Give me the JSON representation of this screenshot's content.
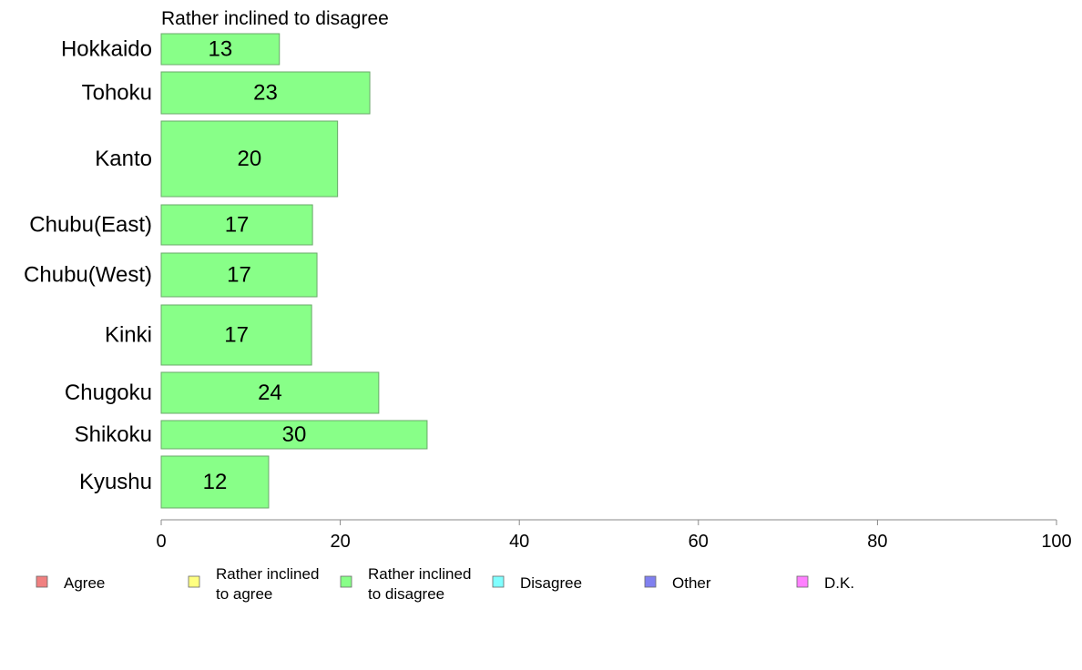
{
  "chart_data": {
    "type": "bar",
    "orientation": "horizontal",
    "title": "Rather inclined to disagree",
    "categories": [
      "Hokkaido",
      "Tohoku",
      "Kanto",
      "Chubu(East)",
      "Chubu(West)",
      "Kinki",
      "Chugoku",
      "Shikoku",
      "Kyushu"
    ],
    "series": [
      {
        "name": "Rather inclined to disagree",
        "color": "#88ff88",
        "values": [
          13,
          23,
          20,
          17,
          17,
          17,
          24,
          30,
          12
        ],
        "bar_values": [
          13.2,
          23.3,
          19.7,
          16.9,
          17.4,
          16.8,
          24.3,
          29.7,
          12.0
        ]
      }
    ],
    "xlim": [
      0,
      100
    ],
    "xticks": [
      "0",
      "20",
      "40",
      "60",
      "80",
      "100"
    ],
    "grid": false,
    "legend_position": "bottom",
    "legend": [
      {
        "lines": [
          "Agree"
        ],
        "color": "#f08080"
      },
      {
        "lines": [
          "Rather inclined",
          "to agree"
        ],
        "color": "#ffff80"
      },
      {
        "lines": [
          "Rather inclined",
          "to disagree"
        ],
        "color": "#88ff88"
      },
      {
        "lines": [
          "Disagree"
        ],
        "color": "#80ffff"
      },
      {
        "lines": [
          "Other"
        ],
        "color": "#8080f0"
      },
      {
        "lines": [
          "D.K."
        ],
        "color": "#ff80ff"
      }
    ]
  }
}
